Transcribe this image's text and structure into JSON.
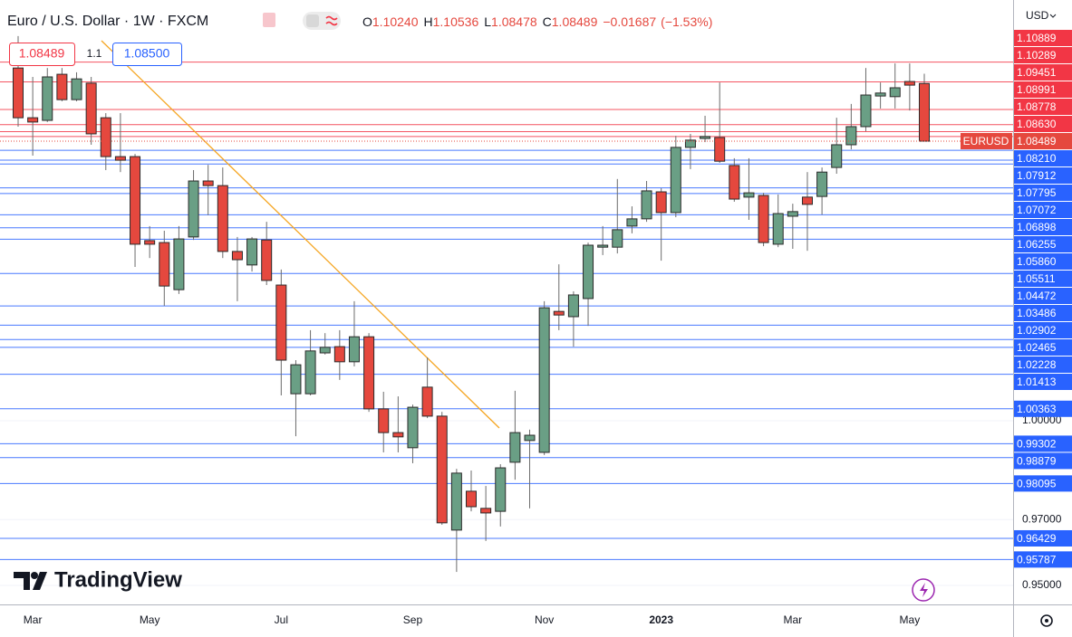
{
  "chart_data": {
    "type": "candlestick",
    "title": "Euro / U.S. Dollar · 1W · FXCM",
    "legend": [
      {
        "key": "O",
        "label": "1.10240"
      },
      {
        "key": "H",
        "label": "1.10536"
      },
      {
        "key": "L",
        "label": "1.08478"
      },
      {
        "key": "C",
        "label": "1.08489"
      }
    ],
    "change": "−0.01687",
    "change_percent": "(−1.53%)",
    "spread": "1.1",
    "buy_price": "1.08500",
    "symbol": "EURUSD",
    "currency": "USD",
    "brand": "TradingView",
    "categories": [
      null,
      "Mar",
      null,
      null,
      null,
      null,
      null,
      null,
      null,
      "May",
      null,
      null,
      null,
      null,
      null,
      null,
      null,
      null,
      "Jul",
      null,
      null,
      null,
      null,
      null,
      null,
      null,
      null,
      "Sep",
      null,
      null,
      null,
      null,
      null,
      null,
      null,
      null,
      "Nov",
      null,
      null,
      null,
      null,
      null,
      null,
      null,
      "2023",
      null,
      null,
      null,
      null,
      null,
      null,
      null,
      null,
      "Mar",
      null,
      null,
      null,
      null,
      null,
      null,
      null,
      "May",
      null
    ],
    "open": [
      1.1071,
      1.092,
      1.0912,
      1.1052,
      1.0975,
      1.1025,
      1.092,
      1.0802,
      1.0802,
      1.0547,
      1.0541,
      1.0398,
      1.0558,
      1.0728,
      1.0714,
      1.0514,
      1.0473,
      1.0549,
      1.0412,
      1.0082,
      1.0082,
      1.0206,
      1.0225,
      1.0179,
      1.0255,
      1.0036,
      0.9964,
      0.9918,
      1.0102,
      1.0014,
      0.9668,
      0.9786,
      0.9734,
      0.9725,
      0.9874,
      0.994,
      0.9904,
      1.0332,
      1.0316,
      1.0371,
      1.0527,
      1.0527,
      1.0591,
      1.0613,
      1.0695,
      1.0632,
      1.083,
      1.0857,
      1.086,
      1.0775,
      1.0679,
      1.0684,
      1.0536,
      1.0621,
      1.0679,
      1.0681,
      1.0769,
      1.0838,
      1.0893,
      1.0986,
      1.0984,
      1.103,
      1.1024
    ],
    "high": [
      1.1168,
      1.1044,
      1.1071,
      1.1071,
      1.1058,
      1.1044,
      1.0934,
      1.0934,
      1.081,
      1.0591,
      1.0577,
      1.0591,
      1.0761,
      1.0777,
      1.0769,
      1.0558,
      1.0558,
      1.0604,
      1.0459,
      1.0184,
      1.0275,
      1.0266,
      1.0275,
      1.0363,
      1.0266,
      1.0088,
      1.0074,
      1.0049,
      1.0192,
      1.0027,
      0.9854,
      0.9849,
      0.9802,
      0.9868,
      1.0091,
      0.9973,
      1.0363,
      1.0475,
      1.0393,
      1.0541,
      1.0591,
      1.0734,
      1.0651,
      1.0728,
      1.0706,
      1.0865,
      1.0871,
      1.0926,
      1.1027,
      1.0797,
      1.0797,
      1.0692,
      1.0687,
      1.0659,
      1.0755,
      1.0769,
      1.092,
      1.0962,
      1.1071,
      1.1027,
      1.1085,
      1.1085,
      1.10536
    ],
    "low": [
      1.0893,
      1.0805,
      1.0907,
      1.097,
      1.097,
      1.0838,
      1.0761,
      1.0755,
      1.0467,
      1.0494,
      1.0349,
      1.0385,
      1.0549,
      1.0624,
      1.0494,
      1.0363,
      1.0453,
      1.0412,
      1.0077,
      0.9953,
      1.0077,
      1.0201,
      1.0124,
      1.0165,
      1.0027,
      0.9904,
      0.9904,
      0.9871,
      1.0008,
      0.9684,
      0.9541,
      0.9725,
      0.9635,
      0.9679,
      0.9821,
      0.9734,
      0.9896,
      1.0275,
      1.0225,
      1.0288,
      1.0503,
      1.0508,
      1.0569,
      1.0604,
      1.0486,
      1.0618,
      1.0764,
      1.0846,
      1.0783,
      1.0665,
      1.061,
      1.053,
      1.0527,
      1.0522,
      1.0516,
      1.0626,
      1.075,
      1.0824,
      1.0879,
      1.0948,
      1.0948,
      1.0942,
      1.08478
    ],
    "close": [
      1.092,
      1.0907,
      1.1044,
      1.0975,
      1.1038,
      1.0871,
      1.0802,
      1.0791,
      1.0536,
      1.0536,
      1.0409,
      1.0552,
      1.0728,
      1.0714,
      1.0514,
      1.0489,
      1.0552,
      1.0426,
      1.0184,
      1.017,
      1.0212,
      1.0223,
      1.0179,
      1.0255,
      1.0036,
      0.9964,
      0.9951,
      1.0041,
      1.0014,
      0.969,
      0.9841,
      0.9739,
      0.972,
      0.9857,
      0.9964,
      0.9956,
      1.0343,
      1.0321,
      1.0382,
      1.0533,
      1.0533,
      1.058,
      1.0613,
      1.0698,
      1.0632,
      1.083,
      1.0852,
      1.0863,
      1.0788,
      1.0673,
      1.0692,
      1.0541,
      1.0629,
      1.0635,
      1.0657,
      1.0755,
      1.0838,
      1.0893,
      1.0989,
      1.0995,
      1.1011,
      1.1019,
      1.08489
    ],
    "up_color": "#6a9f85",
    "down_color": "#e5483e",
    "border_color": "#2b2b2b",
    "resistance_color": "#f23645",
    "support_color": "#2962ff",
    "ylim": [
      0.94423,
      1.12775
    ],
    "yticks": [
      {
        "value": 0.95,
        "label": "0.95000"
      },
      {
        "value": 0.97,
        "label": "0.97000"
      },
      {
        "value": 1,
        "label": "1.00000"
      }
    ],
    "grid": true,
    "levels": [
      1.10889,
      1.10289,
      1.09451,
      1.08991,
      1.08778,
      {
        "value": 1.0863,
        "label": "1.08630"
      },
      {
        "value": 1.0821,
        "label": "1.08210"
      },
      1.07912,
      1.07795,
      1.07072,
      1.06898,
      1.06255,
      {
        "value": 1.0586,
        "label": "1.05860"
      },
      1.05511,
      1.04472,
      1.03486,
      1.02902,
      1.02465,
      1.02228,
      1.01413,
      1.00363,
      0.99302,
      0.98879,
      0.98095,
      0.96429,
      0.95787
    ]
  }
}
